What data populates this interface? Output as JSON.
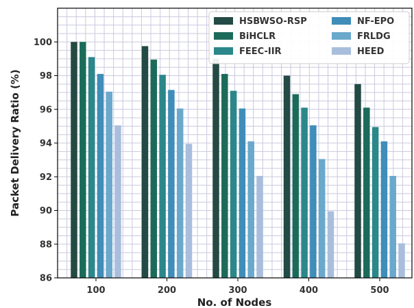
{
  "chart_data": {
    "type": "bar",
    "title": "",
    "xlabel": "No. of Nodes",
    "ylabel": "Packet Delivery Ratio (%)",
    "categories": [
      "100",
      "200",
      "300",
      "400",
      "500"
    ],
    "ylim": [
      86,
      102
    ],
    "yticks": [
      86,
      88,
      90,
      92,
      94,
      96,
      98,
      100
    ],
    "grid": true,
    "legend_position": "top-right",
    "series": [
      {
        "name": "HSBWSO-RSP",
        "color": "#234a44",
        "values": [
          100.0,
          99.75,
          99.0,
          98.0,
          97.5
        ]
      },
      {
        "name": "BiHCLR",
        "color": "#1c6b5a",
        "values": [
          100.0,
          98.95,
          98.1,
          96.9,
          96.1
        ]
      },
      {
        "name": "FEEC-IIR",
        "color": "#2b878a",
        "values": [
          99.1,
          98.05,
          97.1,
          96.1,
          94.95
        ]
      },
      {
        "name": "NF-EPO",
        "color": "#3f8db8",
        "values": [
          98.1,
          97.15,
          96.05,
          95.05,
          94.1
        ]
      },
      {
        "name": "FRLDG",
        "color": "#6aa8cc",
        "values": [
          97.05,
          96.05,
          94.1,
          93.05,
          92.05
        ]
      },
      {
        "name": "HEED",
        "color": "#a9bedc",
        "values": [
          95.05,
          93.95,
          92.05,
          89.95,
          88.05
        ]
      }
    ]
  }
}
